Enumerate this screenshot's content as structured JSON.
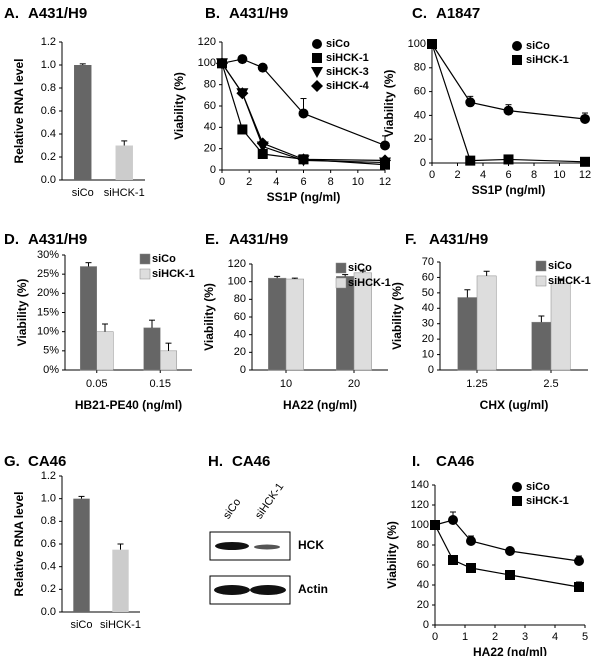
{
  "chart_data": [
    {
      "type": "bar",
      "panel": "A.",
      "title": "A431/H9",
      "ylabel": "Relative RNA level",
      "categories": [
        "siCo",
        "siHCK-1"
      ],
      "values": [
        1.0,
        0.3
      ],
      "errors": [
        0.01,
        0.04
      ],
      "colors": [
        "#666666",
        "#cccccc"
      ],
      "ylim": [
        0,
        1.2
      ],
      "yticks": [
        {
          "value": 0,
          "label": "0.0"
        },
        0.2,
        0.4,
        0.6,
        0.8,
        {
          "value": 1,
          "label": "1.0"
        },
        1.2
      ]
    },
    {
      "type": "line",
      "panel": "B.",
      "title": "A431/H9",
      "xlabel": "SS1P (ng/ml)",
      "ylabel": "Viability (%)",
      "x": [
        0,
        1.5,
        3,
        6,
        12
      ],
      "series": [
        {
          "name": "siCo",
          "color": "#000000",
          "marker": "circle",
          "values": [
            100,
            104,
            96,
            53,
            23
          ],
          "errors": [
            0,
            3,
            0,
            14,
            9
          ]
        },
        {
          "name": "siHCK-1",
          "color": "#000000",
          "marker": "square",
          "values": [
            100,
            38,
            15,
            10,
            5
          ]
        },
        {
          "name": "siHCK-3",
          "color": "#000000",
          "marker": "triangle",
          "values": [
            100,
            72,
            22,
            9,
            7
          ]
        },
        {
          "name": "siHCK-4",
          "color": "#000000",
          "marker": "diamond",
          "values": [
            100,
            72,
            25,
            10,
            9
          ]
        }
      ],
      "xlim": [
        0,
        12
      ],
      "xticks": [
        0,
        2,
        4,
        6,
        8,
        10,
        12
      ],
      "ylim": [
        0,
        120
      ],
      "yticks": [
        0,
        20,
        40,
        60,
        80,
        100,
        120
      ]
    },
    {
      "type": "line",
      "panel": "C.",
      "title": "A1847",
      "xlabel": "SS1P (ng/ml)",
      "ylabel": "Viability (%)",
      "x": [
        0,
        3,
        6,
        12
      ],
      "series": [
        {
          "name": "siCo",
          "color": "#000000",
          "marker": "circle",
          "values": [
            100,
            51,
            44,
            37
          ],
          "errors": [
            0,
            5,
            5,
            5
          ]
        },
        {
          "name": "siHCK-1",
          "color": "#000000",
          "marker": "square",
          "values": [
            100,
            2,
            3,
            1
          ]
        }
      ],
      "xlim": [
        0,
        12
      ],
      "xticks": [
        0,
        2,
        4,
        6,
        8,
        10,
        12
      ],
      "ylim": [
        0,
        100
      ],
      "yticks": [
        0,
        20,
        40,
        60,
        80,
        100
      ]
    },
    {
      "type": "groupbar",
      "panel": "D.",
      "title": "A431/H9",
      "xlabel": "HB21-PE40 (ng/ml)",
      "ylabel": "Viability (%)",
      "categories": [
        "0.05",
        "0.15"
      ],
      "series": [
        {
          "name": "siCo",
          "color": "#666666",
          "values": [
            27,
            11
          ],
          "errors": [
            1,
            2
          ]
        },
        {
          "name": "siHCK-1",
          "color": "#dddddd",
          "values": [
            10,
            5
          ],
          "errors": [
            2,
            2
          ]
        }
      ],
      "ylim": [
        0,
        30
      ],
      "yticks": [
        {
          "value": 0,
          "label": "0%"
        },
        {
          "value": 5,
          "label": "5%"
        },
        {
          "value": 10,
          "label": "10%"
        },
        {
          "value": 15,
          "label": "15%"
        },
        {
          "value": 20,
          "label": "20%"
        },
        {
          "value": 25,
          "label": "25%"
        },
        {
          "value": 30,
          "label": "30%"
        }
      ]
    },
    {
      "type": "groupbar",
      "panel": "E.",
      "title": "A431/H9",
      "xlabel": "HA22 (ng/ml)",
      "ylabel": "Viability (%)",
      "categories": [
        "10",
        "20"
      ],
      "series": [
        {
          "name": "siCo",
          "color": "#666666",
          "values": [
            104,
            106
          ],
          "errors": [
            2,
            2
          ]
        },
        {
          "name": "siHCK-1",
          "color": "#dddddd",
          "values": [
            103,
            110
          ],
          "errors": [
            1,
            2
          ]
        }
      ],
      "ylim": [
        0,
        120
      ],
      "yticks": [
        0,
        20,
        40,
        60,
        80,
        100,
        120
      ]
    },
    {
      "type": "groupbar",
      "panel": "F.",
      "title": "A431/H9",
      "xlabel": "CHX (ug/ml)",
      "ylabel": "Viability (%)",
      "categories": [
        "1.25",
        "2.5"
      ],
      "series": [
        {
          "name": "siCo",
          "color": "#666666",
          "values": [
            47,
            31
          ],
          "errors": [
            5,
            4
          ]
        },
        {
          "name": "siHCK-1",
          "color": "#dddddd",
          "values": [
            61,
            56
          ],
          "errors": [
            3,
            3
          ]
        }
      ],
      "ylim": [
        0,
        70
      ],
      "yticks": [
        0,
        10,
        20,
        30,
        40,
        50,
        60,
        70
      ]
    },
    {
      "type": "bar",
      "panel": "G.",
      "title": "CA46",
      "ylabel": "Relative RNA level",
      "categories": [
        "siCo",
        "siHCK-1"
      ],
      "values": [
        1.0,
        0.55
      ],
      "errors": [
        0.02,
        0.05
      ],
      "colors": [
        "#666666",
        "#cccccc"
      ],
      "ylim": [
        0,
        1.2
      ],
      "yticks": [
        {
          "value": 0,
          "label": "0.0"
        },
        0.2,
        0.4,
        0.6,
        0.8,
        {
          "value": 1,
          "label": "1.0"
        },
        1.2
      ]
    },
    {
      "type": "line",
      "panel": "I.",
      "title": "CA46",
      "xlabel": "HA22 (ng/ml)",
      "ylabel": "Viability (%)",
      "x": [
        0,
        0.6,
        1.2,
        2.5,
        4.8
      ],
      "series": [
        {
          "name": "siCo",
          "color": "#000000",
          "marker": "circle",
          "values": [
            100,
            105,
            84,
            74,
            64
          ],
          "errors": [
            0,
            8,
            5,
            3,
            5
          ]
        },
        {
          "name": "siHCK-1",
          "color": "#000000",
          "marker": "square",
          "values": [
            100,
            65,
            57,
            50,
            38
          ],
          "errors": [
            0,
            4,
            3,
            4,
            5
          ]
        }
      ],
      "xlim": [
        0,
        5
      ],
      "xticks": [
        0,
        1,
        2,
        3,
        4,
        5
      ],
      "ylim": [
        0,
        140
      ],
      "yticks": [
        0,
        20,
        40,
        60,
        80,
        100,
        120,
        140
      ]
    }
  ],
  "blot": {
    "panel": "H.",
    "title": "CA46",
    "lanes": [
      "siCo",
      "siHCK-1"
    ],
    "rows": [
      "HCK",
      "Actin"
    ]
  }
}
